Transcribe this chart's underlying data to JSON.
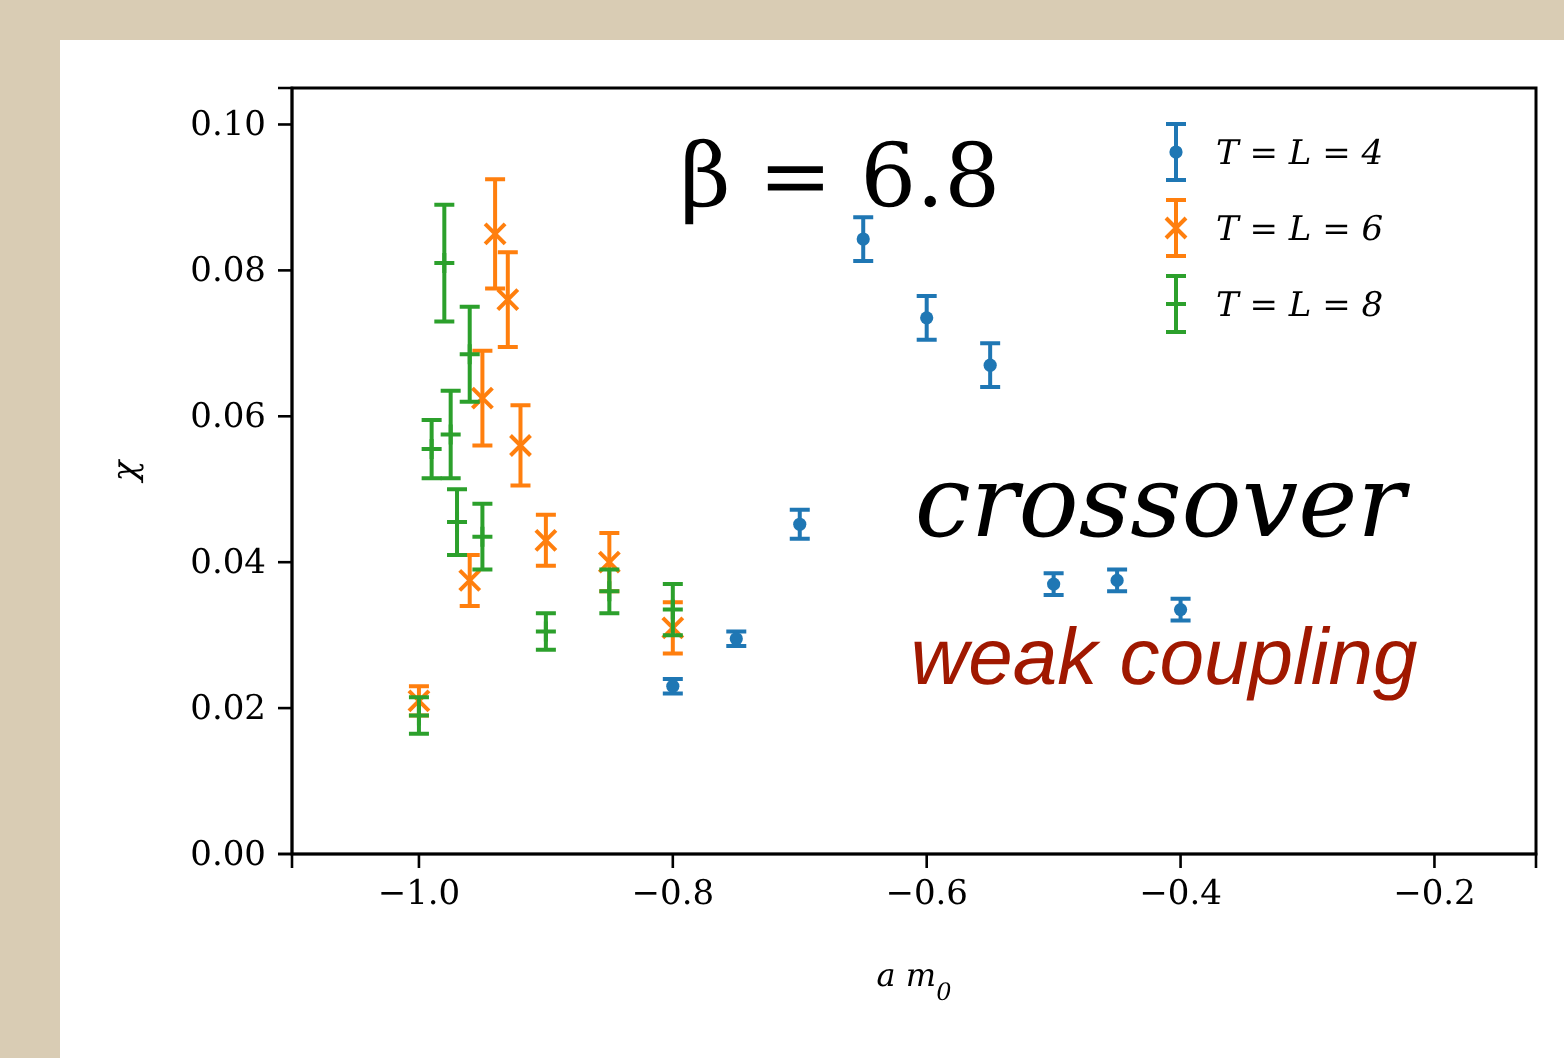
{
  "chart_data": {
    "type": "scatter",
    "xlabel": "a m$_{0}$",
    "ylabel": "χ",
    "xlim": [
      -1.1,
      -0.12
    ],
    "xticks": [
      {
        "value": -1.0,
        "label": "−1.0"
      },
      {
        "value": -0.8,
        "label": "−0.8"
      },
      {
        "value": -0.6,
        "label": "−0.6"
      },
      {
        "value": -0.4,
        "label": "−0.4"
      },
      {
        "value": -0.2,
        "label": "−0.2"
      }
    ],
    "ylim": [
      0,
      0.105
    ],
    "yticks": [
      {
        "value": 0,
        "label": "0.00"
      },
      {
        "value": 0.02,
        "label": "0.02"
      },
      {
        "value": 0.04,
        "label": "0.04"
      },
      {
        "value": 0.06,
        "label": "0.06"
      },
      {
        "value": 0.08,
        "label": "0.08"
      },
      {
        "value": 0.1,
        "label": "0.10"
      }
    ],
    "legend": "top right",
    "grid": false,
    "annotations": [
      "β = 6.8",
      "crossover",
      "weak coupling"
    ],
    "series": [
      {
        "name": "T = L = 4",
        "color": "#1f77b4",
        "marker": "circle",
        "x": [
          -0.8,
          -0.75,
          -0.7,
          -0.65,
          -0.6,
          -0.55,
          -0.5,
          -0.45,
          -0.4
        ],
        "values": [
          0.023,
          0.0295,
          0.0452,
          0.0843,
          0.0735,
          0.067,
          0.037,
          0.0375,
          0.0335
        ],
        "errors": [
          0.001,
          0.001,
          0.002,
          0.003,
          0.003,
          0.003,
          0.0015,
          0.0015,
          0.0015
        ]
      },
      {
        "name": "T = L = 6",
        "color": "#ff7f0e",
        "marker": "cross",
        "x": [
          -1.0,
          -0.96,
          -0.95,
          -0.94,
          -0.93,
          -0.92,
          -0.9,
          -0.85,
          -0.8
        ],
        "values": [
          0.021,
          0.0375,
          0.0625,
          0.085,
          0.076,
          0.056,
          0.043,
          0.04,
          0.031
        ],
        "errors": [
          0.002,
          0.0035,
          0.0065,
          0.0075,
          0.0065,
          0.0055,
          0.0035,
          0.004,
          0.0035
        ]
      },
      {
        "name": "T = L = 8",
        "color": "#2ca02c",
        "marker": "plus",
        "x": [
          -1.0,
          -0.99,
          -0.98,
          -0.975,
          -0.97,
          -0.96,
          -0.95,
          -0.9,
          -0.85,
          -0.8
        ],
        "values": [
          0.019,
          0.0555,
          0.081,
          0.0575,
          0.0455,
          0.0685,
          0.0435,
          0.0305,
          0.036,
          0.0335
        ],
        "errors": [
          0.0025,
          0.004,
          0.008,
          0.006,
          0.0045,
          0.0065,
          0.0045,
          0.0025,
          0.003,
          0.0035
        ]
      }
    ]
  }
}
